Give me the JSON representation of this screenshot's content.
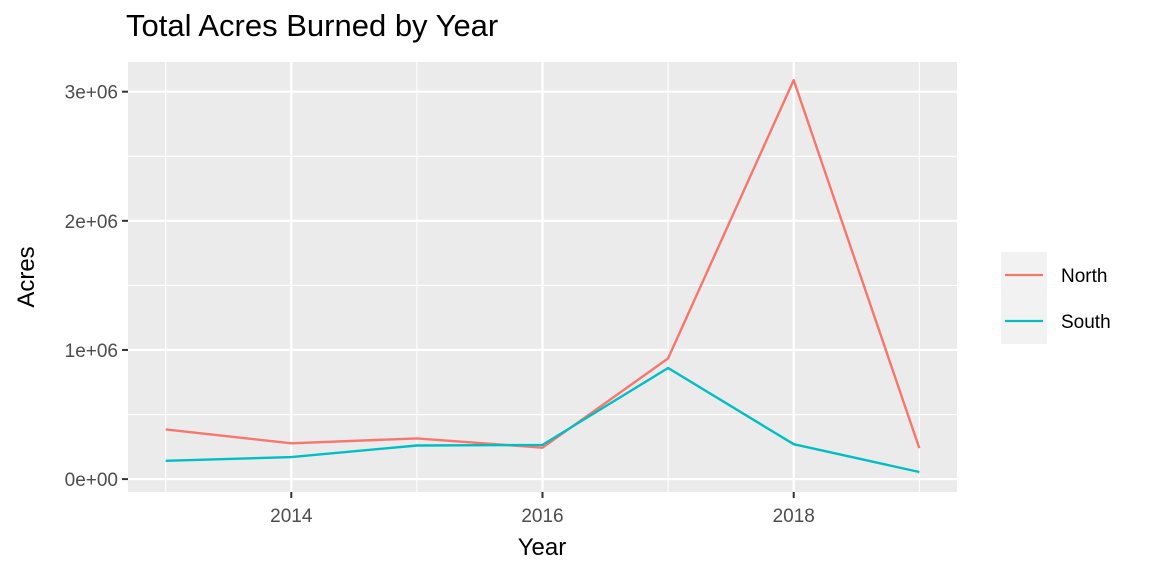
{
  "chart_data": {
    "type": "line",
    "title": "Total Acres Burned by Year",
    "xlabel": "Year",
    "ylabel": "Acres",
    "x": [
      2013,
      2014,
      2015,
      2016,
      2017,
      2018,
      2019
    ],
    "x_ticks": [
      2014,
      2016,
      2018
    ],
    "x_tick_labels": [
      "2014",
      "2016",
      "2018"
    ],
    "xlim": [
      2012.7,
      2019.3
    ],
    "y_ticks": [
      0,
      1000000,
      2000000,
      3000000
    ],
    "y_tick_labels": [
      "0e+00",
      "1e+06",
      "2e+06",
      "3e+06"
    ],
    "ylim": [
      -100000,
      3230000
    ],
    "grid": true,
    "legend_position": "right",
    "series": [
      {
        "name": "North",
        "color": "#F8766D",
        "values": [
          385000,
          277000,
          315000,
          243000,
          935000,
          3090000,
          240000
        ]
      },
      {
        "name": "South",
        "color": "#00BFC4",
        "values": [
          142000,
          170000,
          260000,
          265000,
          860000,
          270000,
          55000
        ]
      }
    ]
  }
}
